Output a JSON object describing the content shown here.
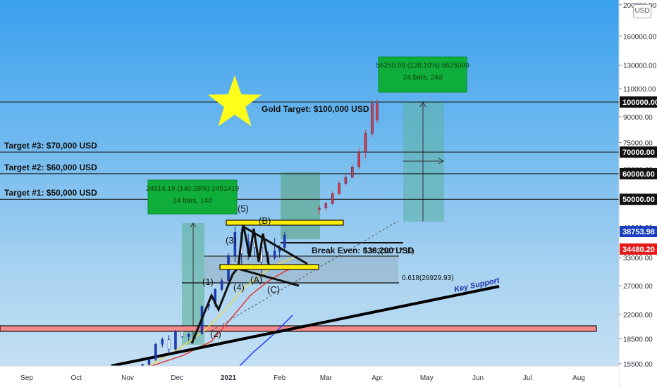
{
  "currency_button": "USD",
  "chart_data": {
    "type": "candlestick",
    "price_axis": {
      "labels": [
        "200000.00",
        "160000.00",
        "130000.00",
        "110000.00",
        "90000.00",
        "75000.00",
        "62000.00",
        "41000.00",
        "33000.00",
        "27000.00",
        "22000.00",
        "18500.00",
        "15500.00"
      ],
      "values": [
        200000,
        160000,
        130000,
        110000,
        90000,
        75000,
        62000,
        41000,
        33000,
        27000,
        22000,
        18500,
        15500
      ],
      "scale": "log",
      "ylim": [
        15000,
        210000
      ]
    },
    "time_axis": {
      "labels": [
        "Sep",
        "Oct",
        "Nov",
        "Dec",
        "2021",
        "Feb",
        "Mar",
        "Apr",
        "May",
        "Jun",
        "Jul",
        "Aug"
      ],
      "dates": [
        "2020-09-01",
        "2020-10-01",
        "2020-11-01",
        "2020-12-01",
        "2021-01-01",
        "2021-02-01",
        "2021-03-01",
        "2021-04-01",
        "2021-05-01",
        "2021-06-01",
        "2021-07-01",
        "2021-08-01"
      ]
    },
    "price_badges": [
      {
        "label": "100000.00",
        "value": 100000,
        "style": "black"
      },
      {
        "label": "70000.00",
        "value": 70000,
        "style": "black"
      },
      {
        "label": "60000.00",
        "value": 60000,
        "style": "black"
      },
      {
        "label": "50000.00",
        "value": 50000,
        "style": "black"
      },
      {
        "label": "38753.98",
        "value": 38753.98,
        "style": "blue"
      },
      {
        "label": "34480.20",
        "value": 34480.2,
        "style": "red"
      }
    ],
    "horizontal_levels": [
      {
        "label": "Gold Target: $100,000 USD",
        "value": 100000
      },
      {
        "label": "Target #3: $70,000 USD",
        "value": 70000
      },
      {
        "label": "Target #2: $60,000 USD",
        "value": 60000
      },
      {
        "label": "Target #1: $50,000 USD",
        "value": 50000
      }
    ],
    "break_even": {
      "label": "Break Even: $36,200 USD",
      "value": 36200
    },
    "fib_levels": [
      {
        "label": "0.382(32717.11)",
        "value": 32717.11
      },
      {
        "label": "0.618(26929.93)",
        "value": 26929.93
      }
    ],
    "waves": [
      "(1)",
      "(2)",
      "(3)",
      "(4)",
      "(5)",
      "(A)",
      "(B)",
      "(C)"
    ],
    "measure_boxes": [
      {
        "line1": "24514.19 (140.28%) 2451419",
        "line2": "14 bars, 14d"
      },
      {
        "line1": "56250.99 (138.10%) 5625099",
        "line2": "24 bars, 24d"
      }
    ],
    "trendline_label": "Key Support",
    "candles": [
      [
        "2020-11-10",
        15300,
        15500,
        15100,
        15400
      ],
      [
        "2020-11-14",
        15400,
        16100,
        15300,
        16000
      ],
      [
        "2020-11-18",
        16000,
        18000,
        15800,
        17800
      ],
      [
        "2020-11-22",
        17800,
        18700,
        17400,
        18400
      ],
      [
        "2020-11-26",
        18400,
        19000,
        16500,
        17200
      ],
      [
        "2020-11-30",
        17200,
        19700,
        17000,
        19500
      ],
      [
        "2020-12-04",
        19500,
        19600,
        18600,
        18800
      ],
      [
        "2020-12-08",
        18800,
        19300,
        18200,
        19100
      ],
      [
        "2020-12-12",
        19100,
        19400,
        18500,
        19200
      ],
      [
        "2020-12-16",
        19200,
        23500,
        19100,
        23300
      ],
      [
        "2020-12-20",
        23300,
        24200,
        22700,
        23700
      ],
      [
        "2020-12-24",
        23700,
        26500,
        23200,
        26300
      ],
      [
        "2020-12-28",
        26300,
        28500,
        26000,
        28000
      ],
      [
        "2021-01-01",
        28000,
        34000,
        28000,
        33500
      ],
      [
        "2021-01-05",
        33500,
        41000,
        32000,
        39500
      ],
      [
        "2021-01-09",
        39500,
        40500,
        31500,
        34000
      ],
      [
        "2021-01-13",
        34000,
        39000,
        32500,
        37000
      ],
      [
        "2021-01-17",
        37000,
        38000,
        33500,
        35500
      ],
      [
        "2021-01-21",
        35500,
        36500,
        29500,
        32000
      ],
      [
        "2021-01-25",
        32000,
        34500,
        30500,
        33000
      ],
      [
        "2021-01-29",
        33000,
        38000,
        32500,
        34500
      ],
      [
        "2021-02-01",
        34500,
        36000,
        33000,
        35500
      ],
      [
        "2021-02-04",
        35500,
        39500,
        35000,
        38700
      ],
      [
        "2021-02-25",
        46500,
        48000,
        45000,
        47000
      ],
      [
        "2021-03-01",
        47000,
        49000,
        46000,
        48500
      ],
      [
        "2021-03-05",
        48500,
        53000,
        48000,
        52000
      ],
      [
        "2021-03-09",
        52000,
        57000,
        51500,
        56000
      ],
      [
        "2021-03-13",
        56000,
        60000,
        55000,
        58500
      ],
      [
        "2021-03-17",
        58500,
        64000,
        58000,
        63000
      ],
      [
        "2021-03-21",
        63000,
        72000,
        62000,
        70000
      ],
      [
        "2021-03-25",
        70000,
        82000,
        67000,
        80000
      ],
      [
        "2021-03-29",
        80000,
        101000,
        78000,
        99000
      ],
      [
        "2021-04-01",
        99000,
        102000,
        86000,
        88000
      ]
    ]
  }
}
